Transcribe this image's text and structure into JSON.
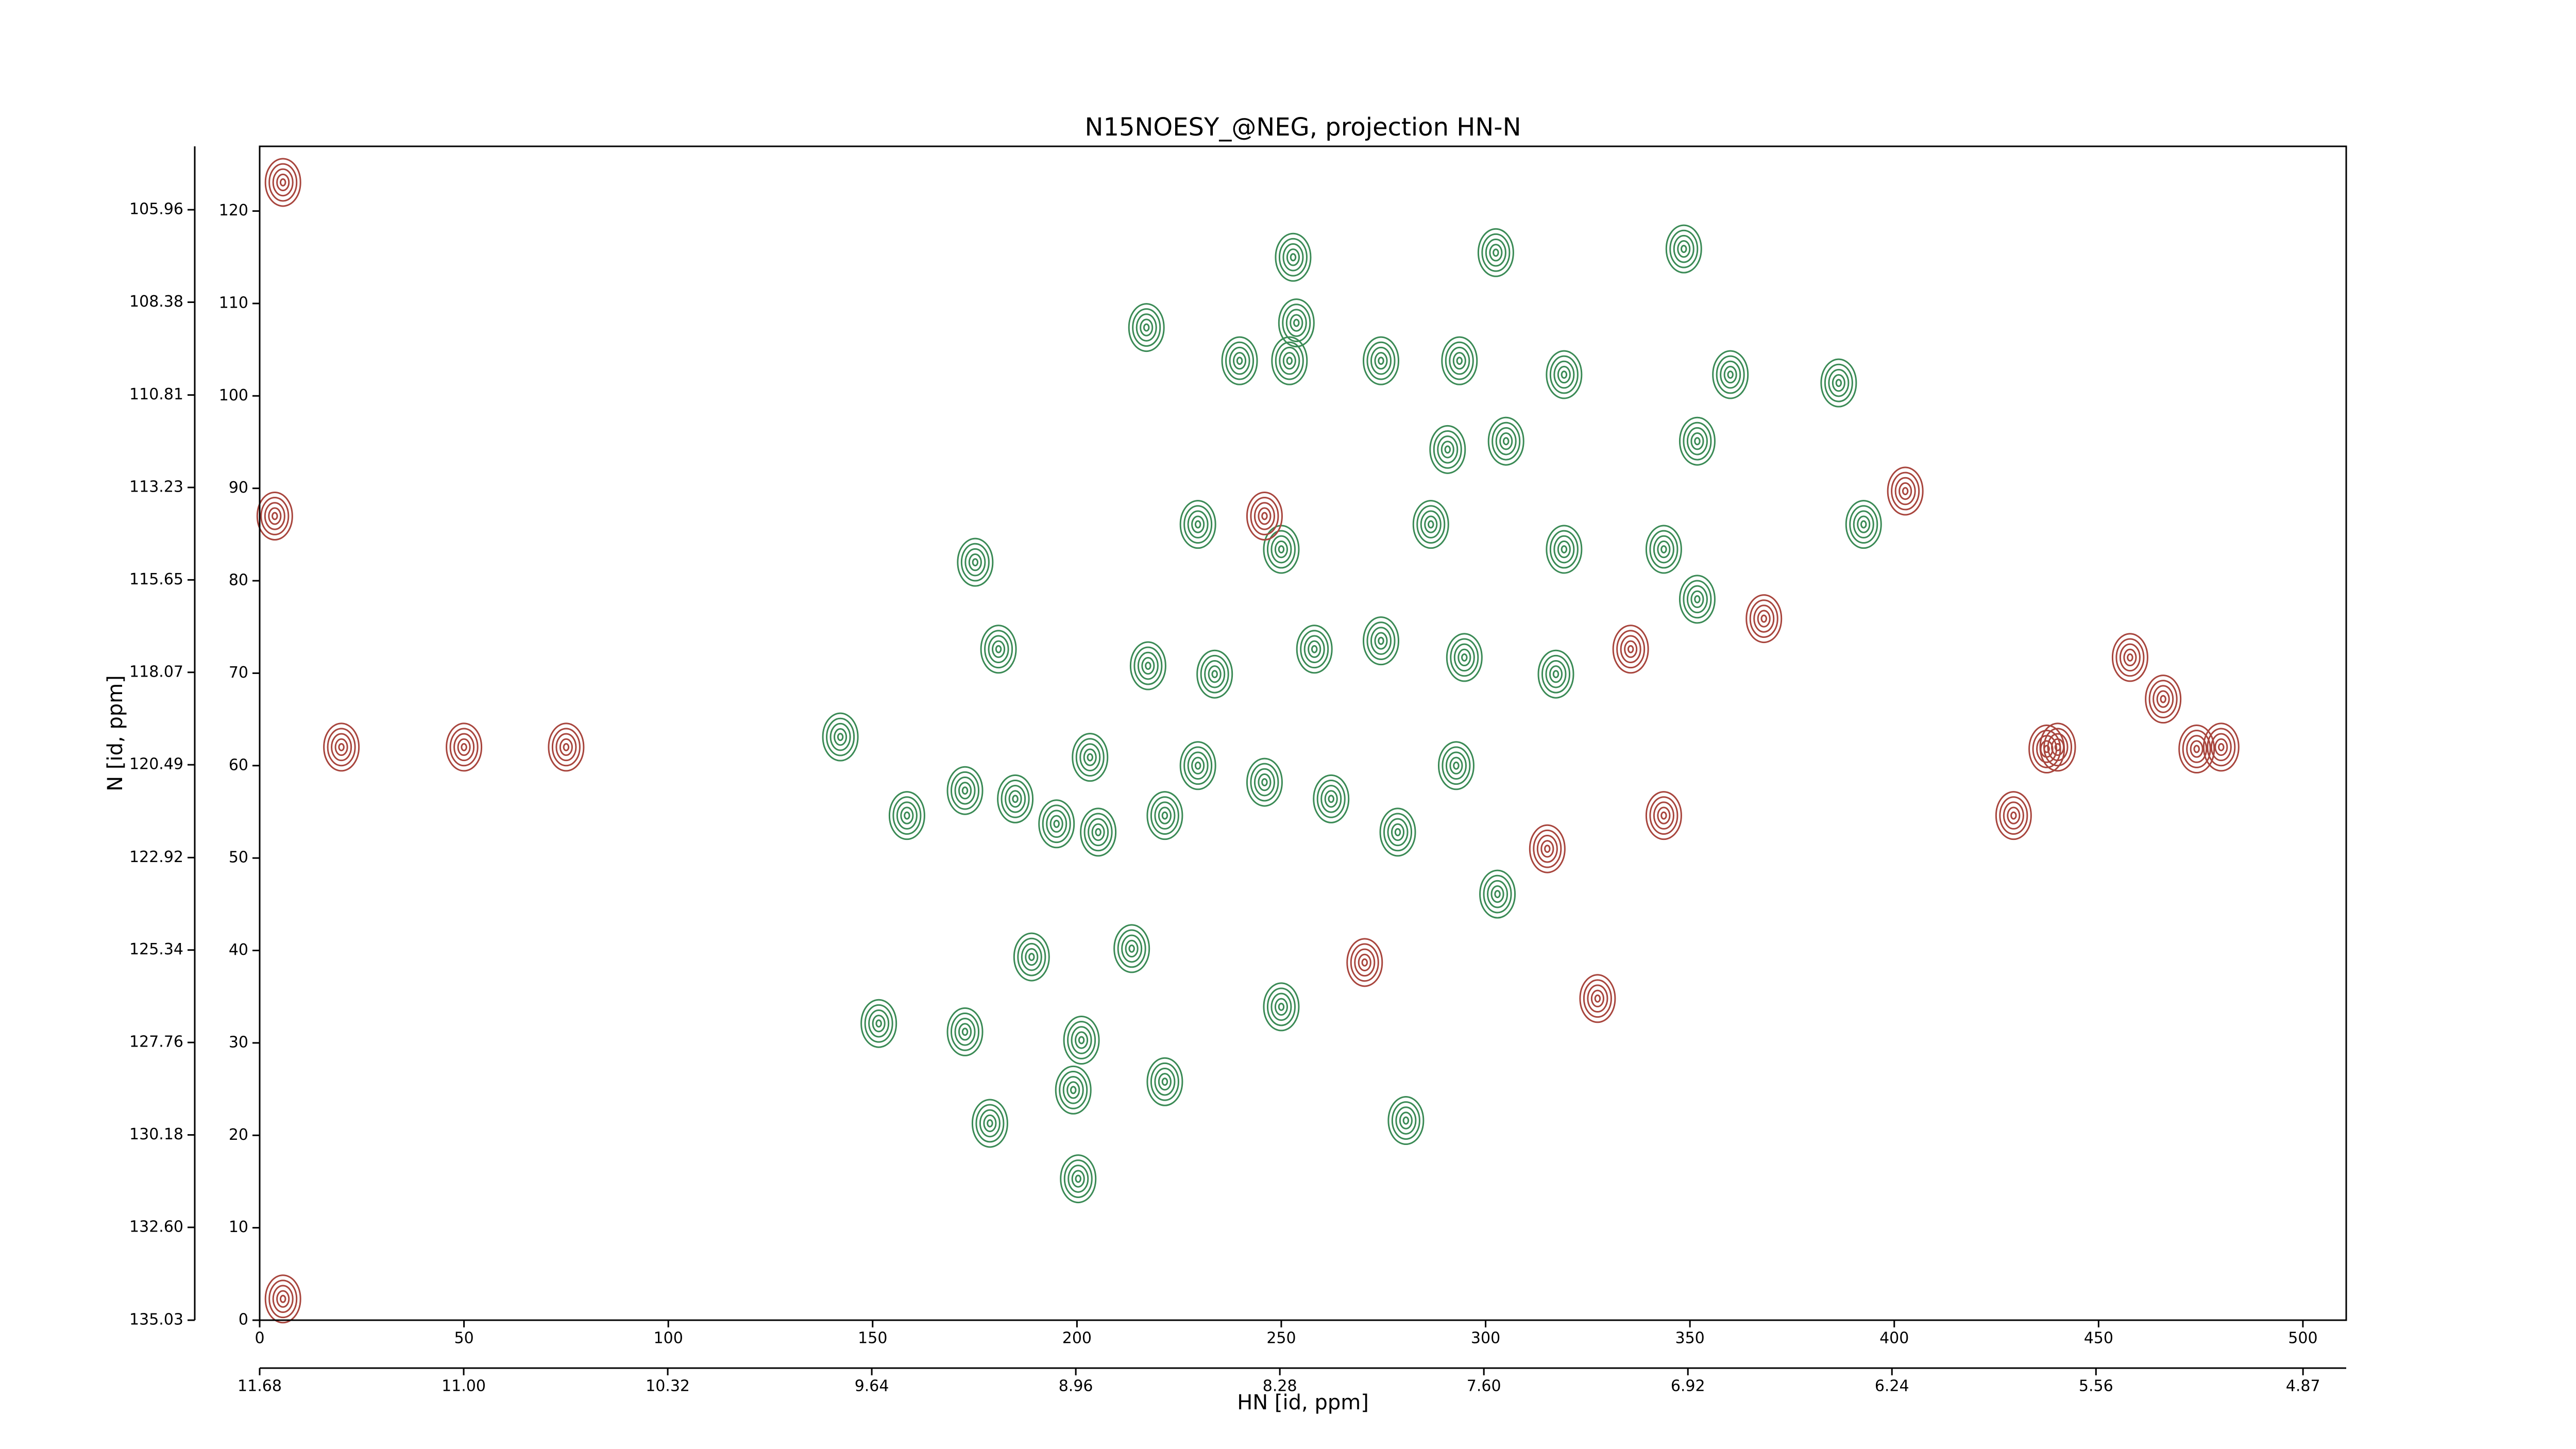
{
  "chart_data": {
    "type": "contour",
    "title": "N15NOESY_@NEG, projection HN-N",
    "x_label": "HN [id, ppm]",
    "y_label": "N [id, ppm]",
    "xlim": [
      0,
      510.6
    ],
    "ylim": [
      0,
      127
    ],
    "xticks": [
      0,
      50,
      100,
      150,
      200,
      250,
      300,
      350,
      400,
      450,
      500
    ],
    "yticks": [
      0,
      10,
      20,
      30,
      40,
      50,
      60,
      70,
      80,
      90,
      100,
      110,
      120
    ],
    "x2lim": [
      11.68,
      4.726
    ],
    "x2ticks": [
      11.68,
      {
        "value": 11,
        "label": "11.00"
      },
      10.32,
      9.64,
      8.96,
      8.28,
      {
        "value": 7.6,
        "label": "7.60"
      },
      6.92,
      6.24,
      5.56,
      4.87
    ],
    "y2lim": [
      135.03,
      104.3
    ],
    "y2ticks": [
      105.96,
      108.38,
      110.81,
      113.23,
      115.65,
      118.07,
      120.49,
      122.92,
      125.34,
      127.76,
      130.18,
      {
        "value": 132.6,
        "label": "132.60"
      },
      135.03
    ],
    "series": [
      {
        "color": "#3a8a55",
        "x": [
          252.9,
          302.5,
          348.5,
          253.7,
          217.0,
          239.8,
          252.0,
          274.4,
          293.6,
          319.2,
          359.9,
          386.4,
          351.8,
          305.0,
          290.7,
          286.6,
          250.0,
          229.6,
          392.5,
          343.6,
          319.2,
          351.8,
          175.1,
          180.8,
          217.4,
          233.7,
          258.1,
          274.4,
          294.8,
          317.2,
          203.2,
          142.1,
          158.4,
          172.6,
          184.9,
          195.0,
          205.2,
          221.5,
          229.6,
          245.9,
          262.2,
          278.5,
          292.8,
          302.9,
          188.9,
          213.4,
          172.6,
          151.5,
          201.1,
          221.5,
          250.0,
          178.7,
          199.1,
          280.5,
          200.3
        ],
        "y": [
          115.0,
          115.5,
          115.9,
          107.9,
          107.4,
          103.8,
          103.8,
          103.8,
          103.8,
          102.3,
          102.3,
          101.4,
          95.1,
          95.1,
          94.2,
          86.1,
          83.4,
          86.1,
          86.1,
          83.4,
          83.4,
          78.0,
          82.0,
          72.6,
          70.8,
          69.9,
          72.6,
          73.5,
          71.7,
          69.9,
          60.9,
          63.1,
          54.6,
          57.3,
          56.4,
          53.7,
          52.8,
          54.6,
          60.0,
          58.2,
          56.4,
          52.8,
          60.0,
          46.1,
          39.3,
          40.2,
          31.2,
          32.1,
          30.3,
          25.8,
          33.9,
          21.3,
          24.9,
          21.6,
          15.3
        ]
      },
      {
        "color": "#a8453d",
        "x": [
          402.7,
          368.1,
          335.5,
          429.2,
          457.7,
          465.8,
          315.1,
          270.4,
          327.4,
          343.6,
          5.7,
          3.7,
          5.7,
          245.9,
          437.3,
          474.0,
          20,
          50,
          75,
          440,
          480
        ],
        "y": [
          89.7,
          75.9,
          72.6,
          54.6,
          71.7,
          67.2,
          51.0,
          38.7,
          34.8,
          54.6,
          123.1,
          87.0,
          2.3,
          87.0,
          61.8,
          61.8,
          62,
          62,
          62,
          62,
          62
        ]
      }
    ]
  }
}
